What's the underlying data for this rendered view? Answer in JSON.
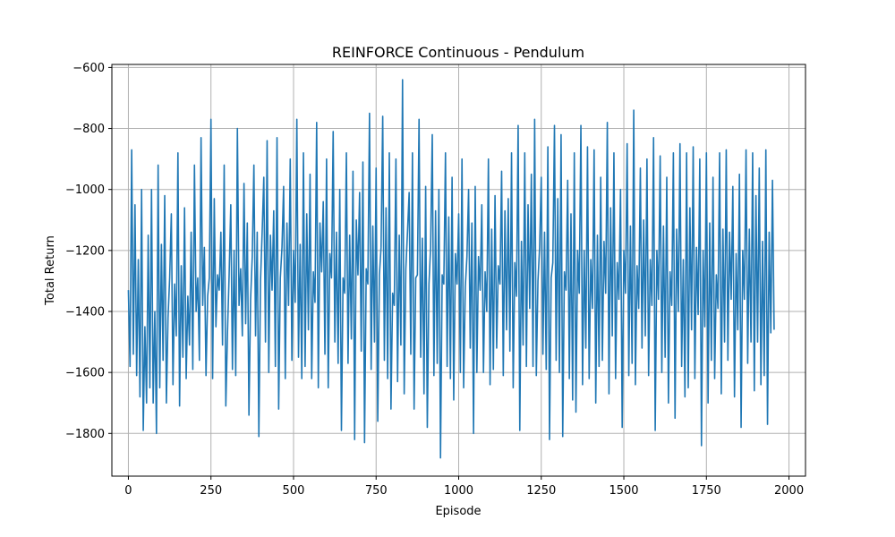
{
  "chart_data": {
    "type": "line",
    "title": "REINFORCE Continuous - Pendulum",
    "xlabel": "Episode",
    "ylabel": "Total Return",
    "xlim": [
      -50,
      2050
    ],
    "ylim": [
      -1940,
      -590
    ],
    "xticks": [
      0,
      250,
      500,
      750,
      1000,
      1250,
      1500,
      1750,
      2000
    ],
    "xtick_labels": [
      "0",
      "250",
      "500",
      "750",
      "1000",
      "1250",
      "1500",
      "1750",
      "2000"
    ],
    "yticks": [
      -1800,
      -1600,
      -1400,
      -1200,
      -1000,
      -800,
      -600
    ],
    "ytick_labels": [
      "−1800",
      "−1600",
      "−1400",
      "−1200",
      "−1000",
      "−800",
      "−600"
    ],
    "grid": true,
    "line_color": "#1f77b4",
    "series": [
      {
        "x_start": 0,
        "x_step": 5,
        "values": [
          -1330,
          -1580,
          -870,
          -1540,
          -1050,
          -1610,
          -1230,
          -1680,
          -1000,
          -1790,
          -1450,
          -1700,
          -1150,
          -1650,
          -1000,
          -1700,
          -1400,
          -1800,
          -920,
          -1650,
          -1180,
          -1560,
          -1020,
          -1700,
          -1420,
          -1290,
          -1080,
          -1640,
          -1310,
          -1480,
          -880,
          -1710,
          -1250,
          -1550,
          -1060,
          -1620,
          -1350,
          -1510,
          -1140,
          -1590,
          -920,
          -1400,
          -1290,
          -1560,
          -830,
          -1380,
          -1190,
          -1610,
          -1350,
          -1290,
          -770,
          -1620,
          -1030,
          -1450,
          -1280,
          -1330,
          -1140,
          -1510,
          -920,
          -1710,
          -1470,
          -1280,
          -1050,
          -1590,
          -1200,
          -1610,
          -800,
          -1380,
          -1260,
          -1480,
          -980,
          -1440,
          -1110,
          -1740,
          -1360,
          -1220,
          -920,
          -1480,
          -1140,
          -1810,
          -1300,
          -1140,
          -960,
          -1500,
          -840,
          -1600,
          -1150,
          -1330,
          -1070,
          -1580,
          -830,
          -1720,
          -1290,
          -1190,
          -990,
          -1620,
          -1110,
          -1380,
          -900,
          -1560,
          -1200,
          -1370,
          -770,
          -1550,
          -1180,
          -1620,
          -880,
          -1580,
          -1080,
          -1460,
          -950,
          -1620,
          -1270,
          -1370,
          -780,
          -1650,
          -1110,
          -1270,
          -1040,
          -1540,
          -900,
          -1650,
          -1210,
          -1290,
          -810,
          -1500,
          -1140,
          -1570,
          -1000,
          -1790,
          -1290,
          -1340,
          -880,
          -1570,
          -1150,
          -1490,
          -940,
          -1820,
          -1100,
          -1280,
          -1010,
          -1530,
          -910,
          -1830,
          -1260,
          -1310,
          -750,
          -1590,
          -1120,
          -1500,
          -930,
          -1760,
          -1280,
          -1190,
          -760,
          -1560,
          -1060,
          -1620,
          -880,
          -1720,
          -1340,
          -1380,
          -900,
          -1630,
          -1150,
          -1510,
          -640,
          -1670,
          -1260,
          -1140,
          -1010,
          -1540,
          -880,
          -1720,
          -1290,
          -1280,
          -770,
          -1550,
          -1160,
          -1670,
          -990,
          -1780,
          -1310,
          -1190,
          -820,
          -1610,
          -1070,
          -1570,
          -1000,
          -1880,
          -1280,
          -1310,
          -880,
          -1580,
          -1090,
          -1620,
          -960,
          -1690,
          -1210,
          -1310,
          -1080,
          -1600,
          -900,
          -1650,
          -1320,
          -1220,
          -1000,
          -1520,
          -1110,
          -1800,
          -990,
          -1600,
          -1220,
          -1330,
          -1050,
          -1600,
          -1270,
          -1400,
          -900,
          -1640,
          -1130,
          -1590,
          -1020,
          -1520,
          -1250,
          -1310,
          -940,
          -1610,
          -1070,
          -1460,
          -1030,
          -1530,
          -880,
          -1650,
          -1240,
          -1350,
          -790,
          -1790,
          -1170,
          -1510,
          -880,
          -1580,
          -1050,
          -1390,
          -950,
          -1580,
          -770,
          -1610,
          -1300,
          -1190,
          -960,
          -1540,
          -1140,
          -1590,
          -860,
          -1820,
          -1290,
          -1240,
          -790,
          -1560,
          -1030,
          -1600,
          -820,
          -1810,
          -1270,
          -1330,
          -970,
          -1620,
          -1080,
          -1690,
          -880,
          -1730,
          -1200,
          -1340,
          -790,
          -1640,
          -1200,
          -1520,
          -860,
          -1620,
          -1230,
          -1390,
          -870,
          -1700,
          -1150,
          -1580,
          -960,
          -1560,
          -1170,
          -1340,
          -780,
          -1670,
          -1060,
          -1480,
          -880,
          -1620,
          -1240,
          -1360,
          -1000,
          -1780,
          -1200,
          -1340,
          -850,
          -1610,
          -1120,
          -1570,
          -740,
          -1640,
          -1250,
          -1390,
          -930,
          -1520,
          -1100,
          -1480,
          -900,
          -1610,
          -1230,
          -1380,
          -830,
          -1790,
          -1200,
          -1360,
          -890,
          -1600,
          -1120,
          -1550,
          -960,
          -1700,
          -1270,
          -1380,
          -880,
          -1750,
          -1130,
          -1400,
          -850,
          -1580,
          -1230,
          -1680,
          -880,
          -1650,
          -1060,
          -1460,
          -860,
          -1620,
          -1190,
          -1410,
          -900,
          -1840,
          -1200,
          -1450,
          -880,
          -1700,
          -1110,
          -1560,
          -960,
          -1620,
          -1280,
          -1390,
          -880,
          -1670,
          -1130,
          -1500,
          -870,
          -1560,
          -1140,
          -1360,
          -990,
          -1680,
          -1210,
          -1460,
          -950,
          -1780,
          -1200,
          -1360,
          -870,
          -1570,
          -1130,
          -1500,
          -880,
          -1660,
          -1020,
          -1500,
          -930,
          -1640,
          -1170,
          -1610,
          -870,
          -1770,
          -1140,
          -1470,
          -970,
          -1460
        ]
      }
    ]
  }
}
